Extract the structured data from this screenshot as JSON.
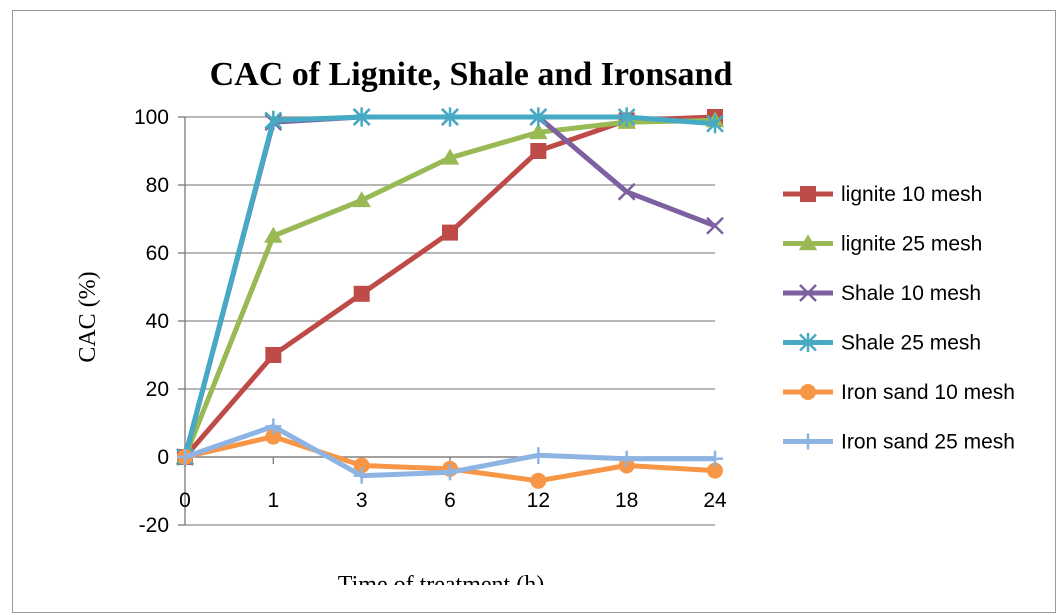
{
  "chart_data": {
    "type": "line",
    "title": "CAC of Lignite, Shale and Ironsand",
    "xlabel": "Time of treatment (h)",
    "ylabel": "CAC (%)",
    "x": [
      "0",
      "1",
      "3",
      "6",
      "12",
      "18",
      "24"
    ],
    "x_axis": "categorical",
    "ylim": [
      -20,
      100
    ],
    "yticks": [
      -20,
      0,
      20,
      40,
      60,
      80,
      100
    ],
    "grid": "horizontal",
    "legend": "right",
    "series": [
      {
        "name": "lignite 10 mesh",
        "color": "#be4b48",
        "marker": "square",
        "values": [
          0,
          30,
          48,
          66,
          90,
          99,
          100
        ]
      },
      {
        "name": "lignite 25 mesh",
        "color": "#98b954",
        "marker": "triangle",
        "values": [
          0,
          65,
          75.5,
          88,
          95.5,
          98.5,
          99
        ]
      },
      {
        "name": "Shale 10 mesh",
        "color": "#7d60a0",
        "marker": "x",
        "values": [
          0,
          98.5,
          100,
          100,
          100,
          78,
          68
        ]
      },
      {
        "name": "Shale 25 mesh",
        "color": "#46aac5",
        "marker": "star",
        "values": [
          0,
          99,
          100,
          100,
          100,
          100,
          98
        ]
      },
      {
        "name": "Iron sand 10 mesh",
        "color": "#f79646",
        "marker": "circle",
        "values": [
          0,
          6,
          -2.5,
          -3.5,
          -7,
          -2.5,
          -4
        ]
      },
      {
        "name": "Iron sand 25 mesh",
        "color": "#8eb4e3",
        "marker": "plus",
        "values": [
          0,
          9,
          -5.5,
          -4.5,
          0.5,
          -0.5,
          -0.5
        ]
      }
    ]
  }
}
